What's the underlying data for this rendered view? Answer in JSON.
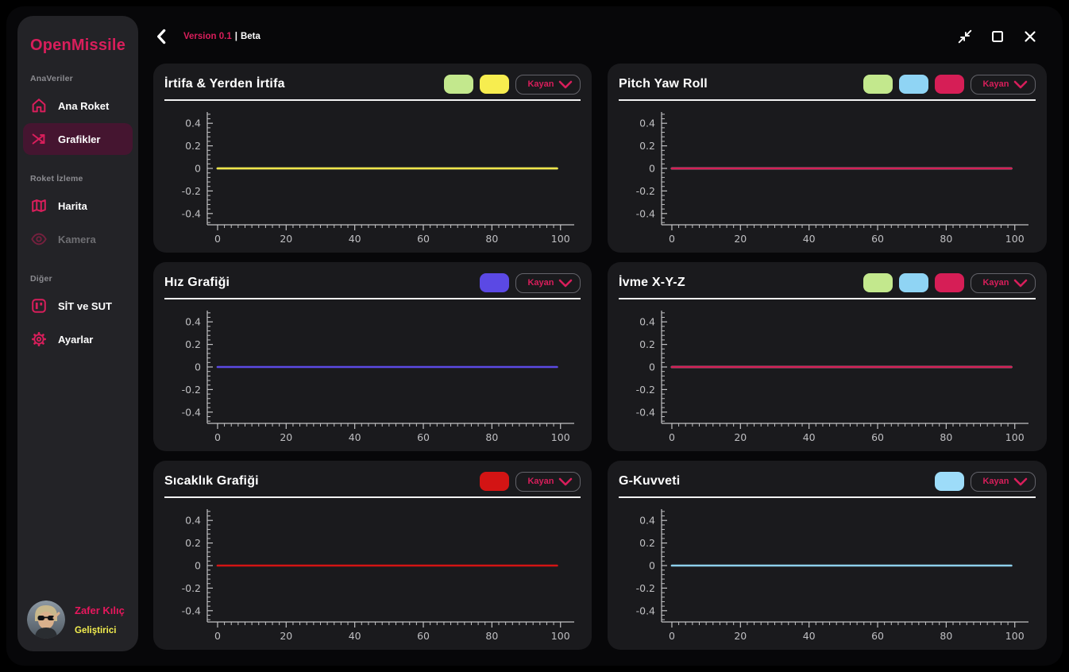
{
  "app": {
    "accent": "#d81e5b",
    "background": "#070709",
    "panel_bg": "#1a1a1d",
    "sidebar_bg": "#232327"
  },
  "topbar": {
    "version": "Version 0.1",
    "separator": "|",
    "beta": "Beta"
  },
  "window_controls": {
    "icons": {
      "collapse": "arrows-inward",
      "maximize": "square-outline",
      "close": "x-cross"
    }
  },
  "sidebar": {
    "logo": "OpenMissile",
    "sections": [
      {
        "label": "AnaVeriler",
        "items": [
          {
            "label": "Ana Roket",
            "icon": "home-icon",
            "active": false,
            "disabled": false
          },
          {
            "label": "Grafikler",
            "icon": "chart-arrows-icon",
            "active": true,
            "disabled": false
          }
        ]
      },
      {
        "label": "Roket İzleme",
        "items": [
          {
            "label": "Harita",
            "icon": "map-icon",
            "active": false,
            "disabled": false
          },
          {
            "label": "Kamera",
            "icon": "eye-icon",
            "active": false,
            "disabled": true
          }
        ]
      },
      {
        "label": "Diğer",
        "items": [
          {
            "label": "SİT ve SUT",
            "icon": "board-icon",
            "active": false,
            "disabled": false
          },
          {
            "label": "Ayarlar",
            "icon": "gear-icon",
            "active": false,
            "disabled": false
          }
        ]
      }
    ],
    "profile": {
      "name": "Zafer Kılıç",
      "role": "Geliştirici"
    }
  },
  "panels": [
    {
      "title": "İrtifa & Yerden İrtifa",
      "legend": [
        "#c3e88d",
        "#f7ed4f"
      ],
      "dropdown": "Kayan"
    },
    {
      "title": "Pitch Yaw Roll",
      "legend": [
        "#c3e88d",
        "#8fd4f4",
        "#d61e56"
      ],
      "dropdown": "Kayan"
    },
    {
      "title": "Hız Grafiği",
      "legend": [
        "#5b49e4"
      ],
      "dropdown": "Kayan"
    },
    {
      "title": "İvme X-Y-Z",
      "legend": [
        "#c3e88d",
        "#8fd4f4",
        "#d61e56"
      ],
      "dropdown": "Kayan"
    },
    {
      "title": "Sıcaklık Grafiği",
      "legend": [
        "#d31414"
      ],
      "dropdown": "Kayan"
    },
    {
      "title": "G-Kuvveti",
      "legend": [
        "#9ddcf9"
      ],
      "dropdown": "Kayan"
    }
  ],
  "chart_data": [
    {
      "type": "line",
      "title": "İrtifa & Yerden İrtifa",
      "xlabel": "",
      "ylabel": "",
      "xlim": [
        -3,
        104
      ],
      "ylim": [
        -0.5,
        0.5
      ],
      "x_ticks": [
        0,
        20,
        40,
        60,
        80,
        100
      ],
      "y_ticks": [
        0.4,
        0.2,
        0,
        -0.2,
        -0.4
      ],
      "x_minor_step": 2,
      "y_minor_step": 0.04,
      "grid": false,
      "legend_position": "header",
      "series": [
        {
          "name": "series-1",
          "color": "#c3e88d",
          "x": [
            0,
            99
          ],
          "y": [
            0,
            0
          ]
        },
        {
          "name": "series-2",
          "color": "#f0e54a",
          "x": [
            0,
            99
          ],
          "y": [
            0,
            0
          ]
        }
      ]
    },
    {
      "type": "line",
      "title": "Pitch Yaw Roll",
      "xlabel": "",
      "ylabel": "",
      "xlim": [
        -3,
        104
      ],
      "ylim": [
        -0.5,
        0.5
      ],
      "x_ticks": [
        0,
        20,
        40,
        60,
        80,
        100
      ],
      "y_ticks": [
        0.4,
        0.2,
        0,
        -0.2,
        -0.4
      ],
      "x_minor_step": 2,
      "y_minor_step": 0.04,
      "grid": false,
      "legend_position": "header",
      "series": [
        {
          "name": "series-1",
          "color": "#c3e88d",
          "x": [
            0,
            99
          ],
          "y": [
            0,
            0
          ]
        },
        {
          "name": "series-2",
          "color": "#8fd4f4",
          "x": [
            0,
            99
          ],
          "y": [
            0,
            0
          ]
        },
        {
          "name": "series-3",
          "color": "#d61e56",
          "x": [
            0,
            99
          ],
          "y": [
            0,
            0
          ]
        }
      ]
    },
    {
      "type": "line",
      "title": "Hız Grafiği",
      "xlabel": "",
      "ylabel": "",
      "xlim": [
        -3,
        104
      ],
      "ylim": [
        -0.5,
        0.5
      ],
      "x_ticks": [
        0,
        20,
        40,
        60,
        80,
        100
      ],
      "y_ticks": [
        0.4,
        0.2,
        0,
        -0.2,
        -0.4
      ],
      "x_minor_step": 2,
      "y_minor_step": 0.04,
      "grid": false,
      "legend_position": "header",
      "series": [
        {
          "name": "series-1",
          "color": "#5b49e4",
          "x": [
            0,
            99
          ],
          "y": [
            0,
            0
          ]
        }
      ]
    },
    {
      "type": "line",
      "title": "İvme X-Y-Z",
      "xlabel": "",
      "ylabel": "",
      "xlim": [
        -3,
        104
      ],
      "ylim": [
        -0.5,
        0.5
      ],
      "x_ticks": [
        0,
        20,
        40,
        60,
        80,
        100
      ],
      "y_ticks": [
        0.4,
        0.2,
        0,
        -0.2,
        -0.4
      ],
      "x_minor_step": 2,
      "y_minor_step": 0.04,
      "grid": false,
      "legend_position": "header",
      "series": [
        {
          "name": "series-1",
          "color": "#c3e88d",
          "x": [
            0,
            99
          ],
          "y": [
            0,
            0
          ]
        },
        {
          "name": "series-2",
          "color": "#8fd4f4",
          "x": [
            0,
            99
          ],
          "y": [
            0,
            0
          ]
        },
        {
          "name": "series-3",
          "color": "#d61e56",
          "x": [
            0,
            99
          ],
          "y": [
            0,
            0
          ]
        }
      ]
    },
    {
      "type": "line",
      "title": "Sıcaklık Grafiği",
      "xlabel": "",
      "ylabel": "",
      "xlim": [
        -3,
        104
      ],
      "ylim": [
        -0.5,
        0.5
      ],
      "x_ticks": [
        0,
        20,
        40,
        60,
        80,
        100
      ],
      "y_ticks": [
        0.4,
        0.2,
        0,
        -0.2,
        -0.4
      ],
      "x_minor_step": 2,
      "y_minor_step": 0.04,
      "grid": false,
      "legend_position": "header",
      "series": [
        {
          "name": "series-1",
          "color": "#d31414",
          "x": [
            0,
            99
          ],
          "y": [
            0,
            0
          ]
        }
      ]
    },
    {
      "type": "line",
      "title": "G-Kuvveti",
      "xlabel": "",
      "ylabel": "",
      "xlim": [
        -3,
        104
      ],
      "ylim": [
        -0.5,
        0.5
      ],
      "x_ticks": [
        0,
        20,
        40,
        60,
        80,
        100
      ],
      "y_ticks": [
        0.4,
        0.2,
        0,
        -0.2,
        -0.4
      ],
      "x_minor_step": 2,
      "y_minor_step": 0.04,
      "grid": false,
      "legend_position": "header",
      "series": [
        {
          "name": "series-1",
          "color": "#8ecfec",
          "x": [
            0,
            99
          ],
          "y": [
            0,
            0
          ]
        }
      ]
    }
  ]
}
